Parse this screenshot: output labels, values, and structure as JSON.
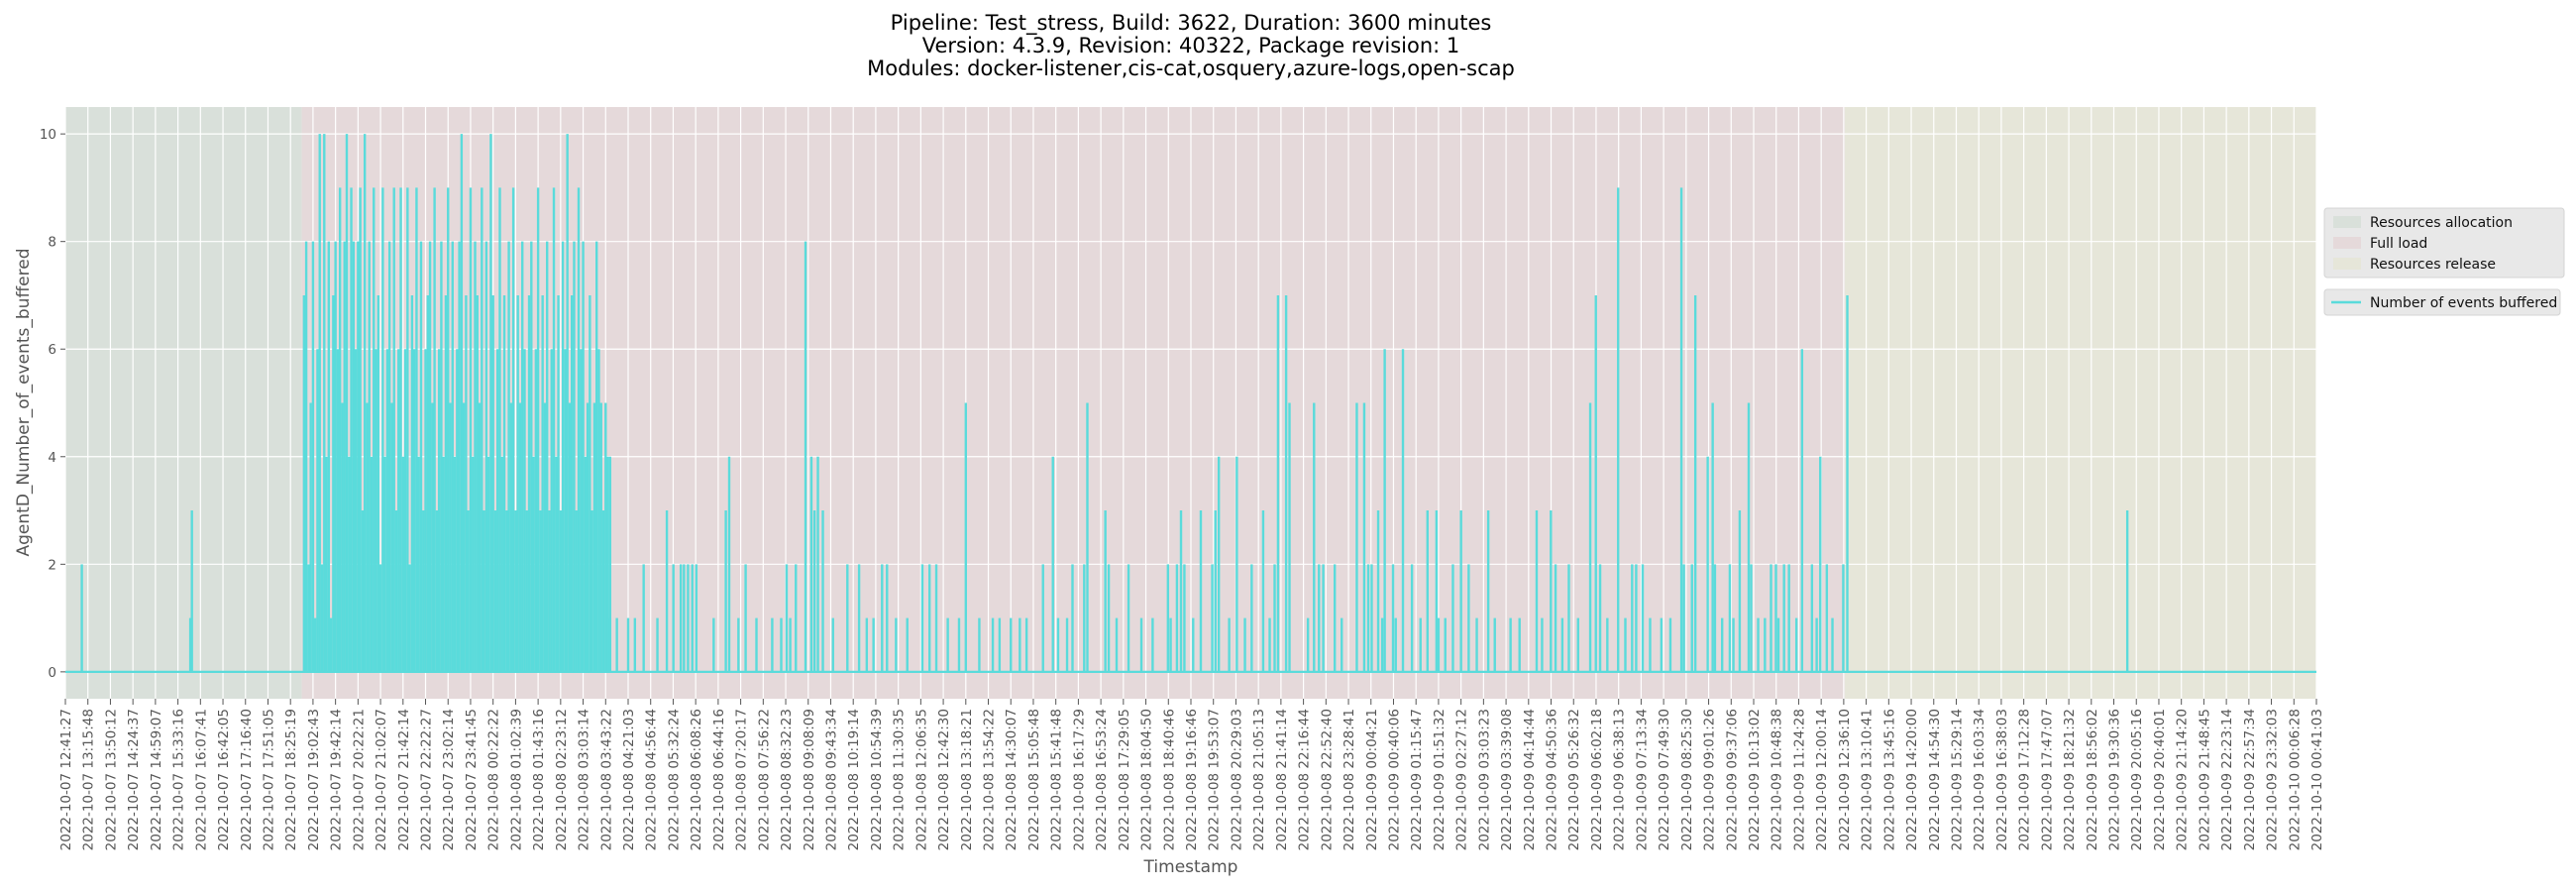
{
  "chart_data": {
    "type": "line",
    "title": [
      "Pipeline: Test_stress, Build: 3622, Duration: 3600 minutes",
      "Version: 4.3.9, Revision: 40322, Package revision: 1",
      "Modules: docker-listener,cis-cat,osquery,azure-logs,open-scap"
    ],
    "xlabel": "Timestamp",
    "ylabel": "AgentD_Number_of_events_buffered",
    "ylim": [
      -0.5,
      10.5
    ],
    "yticks": [
      0,
      2,
      4,
      6,
      8,
      10
    ],
    "grid": true,
    "legend_placement": "right",
    "x_units": "tick index (0 = first timestamp tick, 100 = last)",
    "xlim": [
      0,
      100
    ],
    "xticks": [
      "2022-10-07 12:41:27",
      "2022-10-07 13:15:48",
      "2022-10-07 13:50:12",
      "2022-10-07 14:24:37",
      "2022-10-07 14:59:07",
      "2022-10-07 15:33:16",
      "2022-10-07 16:07:41",
      "2022-10-07 16:42:05",
      "2022-10-07 17:16:40",
      "2022-10-07 17:51:05",
      "2022-10-07 18:25:19",
      "2022-10-07 19:02:43",
      "2022-10-07 19:42:14",
      "2022-10-07 20:22:21",
      "2022-10-07 21:02:07",
      "2022-10-07 21:42:14",
      "2022-10-07 22:22:27",
      "2022-10-07 23:02:14",
      "2022-10-07 23:41:45",
      "2022-10-08 00:22:22",
      "2022-10-08 01:02:39",
      "2022-10-08 01:43:16",
      "2022-10-08 02:23:12",
      "2022-10-08 03:03:14",
      "2022-10-08 03:43:22",
      "2022-10-08 04:21:03",
      "2022-10-08 04:56:44",
      "2022-10-08 05:32:24",
      "2022-10-08 06:08:26",
      "2022-10-08 06:44:16",
      "2022-10-08 07:20:17",
      "2022-10-08 07:56:22",
      "2022-10-08 08:32:23",
      "2022-10-08 09:08:09",
      "2022-10-08 09:43:34",
      "2022-10-08 10:19:14",
      "2022-10-08 10:54:39",
      "2022-10-08 11:30:35",
      "2022-10-08 12:06:35",
      "2022-10-08 12:42:30",
      "2022-10-08 13:18:21",
      "2022-10-08 13:54:22",
      "2022-10-08 14:30:07",
      "2022-10-08 15:05:48",
      "2022-10-08 15:41:48",
      "2022-10-08 16:17:29",
      "2022-10-08 16:53:24",
      "2022-10-08 17:29:05",
      "2022-10-08 18:04:50",
      "2022-10-08 18:40:46",
      "2022-10-08 19:16:46",
      "2022-10-08 19:53:07",
      "2022-10-08 20:29:03",
      "2022-10-08 21:05:13",
      "2022-10-08 21:41:14",
      "2022-10-08 22:16:44",
      "2022-10-08 22:52:40",
      "2022-10-08 23:28:41",
      "2022-10-09 00:04:21",
      "2022-10-09 00:40:06",
      "2022-10-09 01:15:47",
      "2022-10-09 01:51:32",
      "2022-10-09 02:27:12",
      "2022-10-09 03:03:23",
      "2022-10-09 03:39:08",
      "2022-10-09 04:14:44",
      "2022-10-09 04:50:36",
      "2022-10-09 05:26:32",
      "2022-10-09 06:02:18",
      "2022-10-09 06:38:13",
      "2022-10-09 07:13:34",
      "2022-10-09 07:49:30",
      "2022-10-09 08:25:30",
      "2022-10-09 09:01:26",
      "2022-10-09 09:37:06",
      "2022-10-09 10:13:02",
      "2022-10-09 10:48:38",
      "2022-10-09 11:24:28",
      "2022-10-09 12:00:14",
      "2022-10-09 12:36:10",
      "2022-10-09 13:10:41",
      "2022-10-09 13:45:16",
      "2022-10-09 14:20:00",
      "2022-10-09 14:54:30",
      "2022-10-09 15:29:14",
      "2022-10-09 16:03:34",
      "2022-10-09 16:38:03",
      "2022-10-09 17:12:28",
      "2022-10-09 17:47:07",
      "2022-10-09 18:21:32",
      "2022-10-09 18:56:02",
      "2022-10-09 19:30:36",
      "2022-10-09 20:05:16",
      "2022-10-09 20:40:01",
      "2022-10-09 21:14:20",
      "2022-10-09 21:48:45",
      "2022-10-09 22:23:14",
      "2022-10-09 22:57:34",
      "2022-10-09 23:32:03",
      "2022-10-10 00:06:28",
      "2022-10-10 00:41:03"
    ],
    "phases": [
      {
        "name": "Resources allocation",
        "start": 0,
        "end": 10.5,
        "color": "#d9e0da"
      },
      {
        "name": "Full load",
        "start": 10.5,
        "end": 79.05,
        "color": "#e5d9da"
      },
      {
        "name": "Resources release",
        "start": 79.05,
        "end": 100,
        "color": "#e6e6d9"
      }
    ],
    "series": [
      {
        "name": "Number of events buffered",
        "color": "#5adbdb",
        "baseline": 0,
        "dense_segment": {
          "start": 10.6,
          "step": 0.1,
          "values": [
            7,
            8,
            2,
            5,
            8,
            1,
            6,
            10,
            2,
            10,
            4,
            8,
            1,
            7,
            8,
            6,
            9,
            5,
            8,
            10,
            4,
            9,
            8,
            6,
            8,
            9,
            3,
            10,
            5,
            8,
            4,
            9,
            6,
            7,
            2,
            9,
            4,
            6,
            8,
            5,
            9,
            3,
            6,
            9,
            4,
            6,
            9,
            2,
            7,
            6,
            9,
            4,
            8,
            3,
            6,
            7,
            8,
            5,
            9,
            3,
            6,
            8,
            4,
            7,
            9,
            5,
            8,
            4,
            6,
            8,
            10,
            5,
            7,
            3,
            9,
            4,
            8,
            7,
            5,
            9,
            3,
            8,
            4,
            10,
            7,
            3,
            6,
            9,
            4,
            7,
            3,
            8,
            5,
            9,
            3,
            7,
            5,
            8,
            6,
            3,
            7,
            8,
            4,
            6,
            9,
            3,
            7,
            5,
            8,
            3,
            6,
            9,
            4,
            7,
            3,
            8,
            6,
            10,
            5,
            7,
            8,
            3,
            9,
            6,
            8,
            4,
            5,
            7,
            3,
            5,
            8,
            6,
            5,
            3,
            5,
            4,
            1
          ]
        },
        "spikes": [
          [
            0.73,
            2
          ],
          [
            5.62,
            3
          ],
          [
            5.55,
            1
          ],
          [
            24.2,
            4
          ],
          [
            24.5,
            1
          ],
          [
            25.0,
            1
          ],
          [
            25.3,
            1
          ],
          [
            25.69,
            2
          ],
          [
            26.3,
            1
          ],
          [
            26.72,
            3
          ],
          [
            27.01,
            2
          ],
          [
            27.34,
            2
          ],
          [
            27.48,
            2
          ],
          [
            27.66,
            2
          ],
          [
            27.85,
            2
          ],
          [
            28.03,
            2
          ],
          [
            28.8,
            1
          ],
          [
            29.34,
            3
          ],
          [
            29.49,
            4
          ],
          [
            29.9,
            1
          ],
          [
            30.22,
            2
          ],
          [
            30.7,
            1
          ],
          [
            31.4,
            1
          ],
          [
            31.8,
            1
          ],
          [
            32.04,
            2
          ],
          [
            32.2,
            1
          ],
          [
            32.45,
            2
          ],
          [
            32.88,
            8
          ],
          [
            33.14,
            4
          ],
          [
            33.28,
            3
          ],
          [
            33.43,
            4
          ],
          [
            33.65,
            3
          ],
          [
            34.1,
            1
          ],
          [
            34.74,
            2
          ],
          [
            35.26,
            2
          ],
          [
            35.6,
            1
          ],
          [
            35.9,
            1
          ],
          [
            36.28,
            2
          ],
          [
            36.5,
            2
          ],
          [
            36.9,
            1
          ],
          [
            37.4,
            1
          ],
          [
            38.07,
            2
          ],
          [
            38.39,
            2
          ],
          [
            38.69,
            2
          ],
          [
            39.2,
            1
          ],
          [
            39.7,
            1
          ],
          [
            40.0,
            5
          ],
          [
            40.6,
            1
          ],
          [
            41.2,
            1
          ],
          [
            41.5,
            1
          ],
          [
            42.0,
            1
          ],
          [
            42.4,
            1
          ],
          [
            42.7,
            1
          ],
          [
            43.43,
            2
          ],
          [
            43.87,
            4
          ],
          [
            44.1,
            1
          ],
          [
            44.5,
            1
          ],
          [
            44.74,
            2
          ],
          [
            45.26,
            2
          ],
          [
            45.4,
            5
          ],
          [
            46.2,
            3
          ],
          [
            46.35,
            2
          ],
          [
            46.7,
            1
          ],
          [
            47.23,
            2
          ],
          [
            47.8,
            1
          ],
          [
            48.3,
            1
          ],
          [
            48.98,
            2
          ],
          [
            49.1,
            1
          ],
          [
            49.38,
            2
          ],
          [
            49.56,
            3
          ],
          [
            49.71,
            2
          ],
          [
            50.1,
            1
          ],
          [
            50.44,
            3
          ],
          [
            50.95,
            2
          ],
          [
            51.09,
            3
          ],
          [
            51.24,
            4
          ],
          [
            51.7,
            1
          ],
          [
            52.04,
            4
          ],
          [
            52.4,
            1
          ],
          [
            52.7,
            2
          ],
          [
            53.21,
            3
          ],
          [
            53.5,
            1
          ],
          [
            53.72,
            2
          ],
          [
            53.87,
            7
          ],
          [
            54.23,
            7
          ],
          [
            54.38,
            5
          ],
          [
            55.2,
            1
          ],
          [
            55.47,
            5
          ],
          [
            55.69,
            2
          ],
          [
            55.88,
            2
          ],
          [
            56.39,
            2
          ],
          [
            56.7,
            1
          ],
          [
            57.37,
            5
          ],
          [
            57.7,
            5
          ],
          [
            57.88,
            2
          ],
          [
            58.03,
            2
          ],
          [
            58.32,
            3
          ],
          [
            58.5,
            1
          ],
          [
            58.61,
            6
          ],
          [
            58.98,
            2
          ],
          [
            59.1,
            1
          ],
          [
            59.42,
            6
          ],
          [
            59.82,
            2
          ],
          [
            60.2,
            1
          ],
          [
            60.51,
            3
          ],
          [
            60.91,
            3
          ],
          [
            61.0,
            1
          ],
          [
            61.3,
            1
          ],
          [
            61.64,
            2
          ],
          [
            62.0,
            3
          ],
          [
            62.34,
            2
          ],
          [
            62.7,
            1
          ],
          [
            63.21,
            3
          ],
          [
            63.5,
            1
          ],
          [
            64.2,
            1
          ],
          [
            64.6,
            1
          ],
          [
            65.36,
            3
          ],
          [
            65.6,
            1
          ],
          [
            65.99,
            3
          ],
          [
            66.2,
            2
          ],
          [
            66.5,
            1
          ],
          [
            66.79,
            2
          ],
          [
            67.2,
            1
          ],
          [
            67.74,
            5
          ],
          [
            67.99,
            7
          ],
          [
            68.18,
            2
          ],
          [
            68.5,
            1
          ],
          [
            68.98,
            9
          ],
          [
            69.3,
            1
          ],
          [
            69.6,
            2
          ],
          [
            69.78,
            2
          ],
          [
            70.07,
            2
          ],
          [
            70.4,
            1
          ],
          [
            70.9,
            1
          ],
          [
            71.3,
            1
          ],
          [
            71.79,
            9
          ],
          [
            71.9,
            2
          ],
          [
            72.26,
            2
          ],
          [
            72.41,
            7
          ],
          [
            72.96,
            4
          ],
          [
            73.18,
            5
          ],
          [
            73.28,
            2
          ],
          [
            73.6,
            1
          ],
          [
            73.94,
            2
          ],
          [
            74.1,
            1
          ],
          [
            74.38,
            3
          ],
          [
            74.78,
            5
          ],
          [
            74.89,
            2
          ],
          [
            75.2,
            1
          ],
          [
            75.5,
            1
          ],
          [
            75.77,
            2
          ],
          [
            75.99,
            2
          ],
          [
            76.1,
            1
          ],
          [
            76.35,
            2
          ],
          [
            76.57,
            2
          ],
          [
            76.9,
            1
          ],
          [
            77.15,
            6
          ],
          [
            77.59,
            2
          ],
          [
            77.8,
            1
          ],
          [
            77.96,
            4
          ],
          [
            78.25,
            2
          ],
          [
            78.5,
            1
          ],
          [
            78.98,
            2
          ],
          [
            79.16,
            7
          ],
          [
            91.6,
            3
          ]
        ]
      }
    ]
  },
  "legend": {
    "phases": [
      "Resources allocation",
      "Full load",
      "Resources release"
    ],
    "series": [
      "Number of events buffered"
    ]
  }
}
